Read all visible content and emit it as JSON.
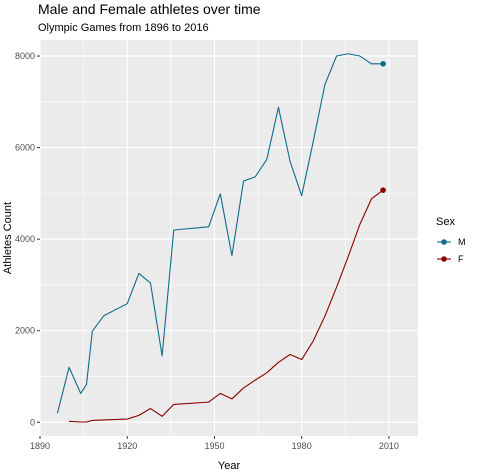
{
  "chart_data": {
    "type": "line",
    "title": "Male and Female athletes over time",
    "subtitle": "Olympic Games from 1896 to 2016",
    "xlabel": "Year",
    "ylabel": "Athletes Count",
    "xlim": [
      1890,
      2020
    ],
    "ylim": [
      -300,
      8350
    ],
    "x_ticks": [
      1890,
      1920,
      1950,
      1980,
      2010
    ],
    "y_ticks": [
      0,
      2000,
      4000,
      6000,
      8000
    ],
    "grid": true,
    "legend": {
      "title": "Sex",
      "position": "right"
    },
    "series": [
      {
        "name": "M",
        "color": "#0e6b8a",
        "end_marker": true,
        "x": [
          1896,
          1900,
          1904,
          1906,
          1908,
          1912,
          1920,
          1924,
          1928,
          1932,
          1936,
          1948,
          1952,
          1956,
          1960,
          1964,
          1968,
          1972,
          1976,
          1980,
          1984,
          1988,
          1992,
          1996,
          2000,
          2004,
          2008
        ],
        "values": [
          200,
          1200,
          630,
          830,
          1990,
          2330,
          2590,
          3250,
          3040,
          1450,
          4200,
          4270,
          4990,
          3640,
          5270,
          5360,
          5740,
          6880,
          5700,
          4950,
          6140,
          7380,
          8000,
          8050,
          8000,
          7830,
          7830
        ]
      },
      {
        "name": "F",
        "color": "#8b0000",
        "end_marker": true,
        "x": [
          1900,
          1904,
          1906,
          1908,
          1912,
          1920,
          1924,
          1928,
          1932,
          1936,
          1948,
          1952,
          1956,
          1960,
          1964,
          1968,
          1972,
          1976,
          1980,
          1984,
          1988,
          1992,
          1996,
          2000,
          2004,
          2008
        ],
        "values": [
          20,
          6,
          6,
          40,
          50,
          70,
          150,
          300,
          130,
          390,
          440,
          630,
          510,
          750,
          920,
          1080,
          1310,
          1480,
          1370,
          1780,
          2320,
          2950,
          3620,
          4320,
          4880,
          5070
        ]
      }
    ]
  }
}
